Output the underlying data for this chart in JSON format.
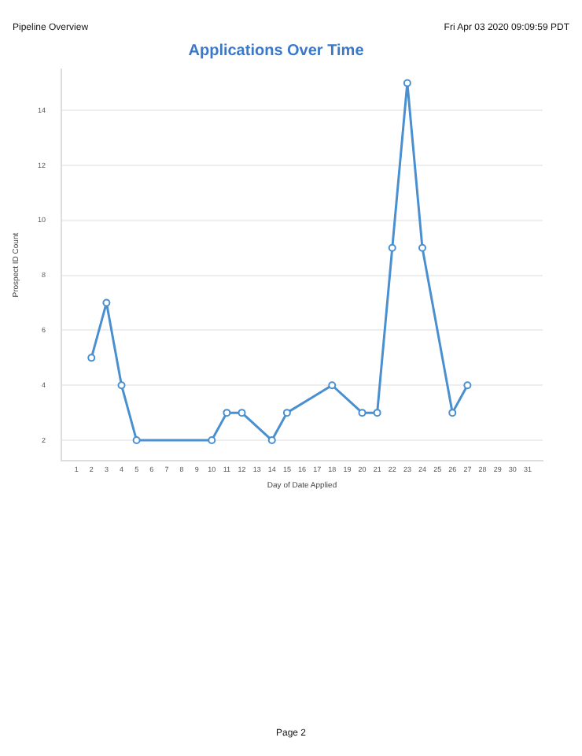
{
  "chart_data": {
    "type": "line",
    "title": "Applications Over Time",
    "xlabel": "Day of Date Applied",
    "ylabel": "Prospect ID Count",
    "annotations": [
      "Pipeline Overview",
      "Fri Apr 03 2020 09:09:59 PDT",
      "Page 2"
    ],
    "x": [
      2,
      3,
      4,
      5,
      10,
      11,
      12,
      14,
      15,
      18,
      20,
      21,
      22,
      23,
      24,
      26,
      27
    ],
    "series": [
      {
        "color": "#4a90d0",
        "values": [
          5,
          7,
          4,
          2,
          2,
          3,
          3,
          2,
          3,
          4,
          3,
          3,
          9,
          15,
          9,
          3,
          4
        ]
      }
    ],
    "xlim": [
      0,
      32
    ],
    "xticks": [
      1,
      2,
      3,
      4,
      5,
      6,
      7,
      8,
      9,
      10,
      11,
      12,
      13,
      14,
      15,
      16,
      17,
      18,
      19,
      20,
      21,
      22,
      23,
      24,
      25,
      26,
      27,
      28,
      29,
      30,
      31
    ],
    "ylim": [
      1.25,
      15.5
    ],
    "yticks": [
      2,
      4,
      6,
      8,
      10,
      12,
      14
    ],
    "grid": "y",
    "marker": "circle",
    "line_style": "solid",
    "legend": false
  }
}
